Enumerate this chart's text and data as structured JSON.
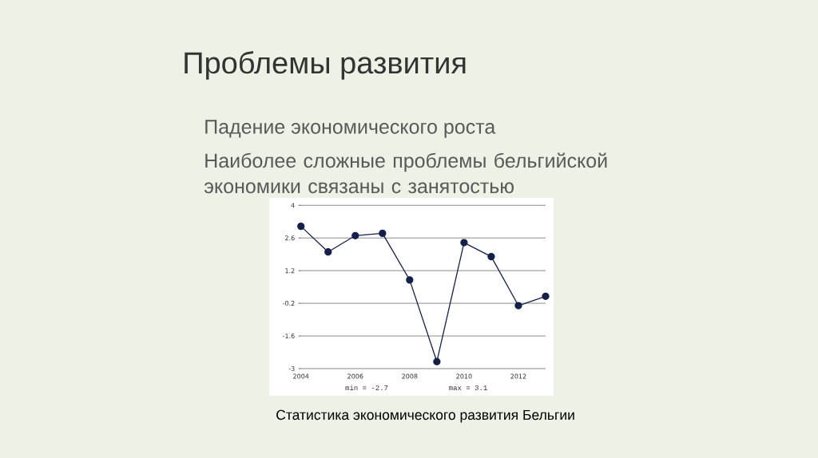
{
  "chart_data": {
    "type": "line",
    "title": "Проблемы развития",
    "annotations": [
      "Падение экономического роста",
      "Наиболее сложные проблемы бельгийской экономики связаны с занятостью",
      "min = -2.7",
      "max = 3.1",
      "Статистика экономического развития Бельгии"
    ],
    "x": [
      2004,
      2005,
      2006,
      2007,
      2008,
      2009,
      2010,
      2011,
      2012,
      2013
    ],
    "series": [
      {
        "color": "#14204a",
        "values": [
          3.1,
          2.0,
          2.7,
          2.8,
          0.8,
          -2.7,
          2.4,
          1.8,
          -0.3,
          0.1
        ]
      }
    ],
    "xlim": [
      2004,
      2013
    ],
    "ylim": [
      -3,
      4
    ],
    "xticks": [
      2004,
      2006,
      2008,
      2010,
      2012
    ],
    "yticks": [
      -3,
      -1.6,
      -0.2,
      1.2,
      2.6,
      4
    ],
    "grid": "y",
    "marker": "circle",
    "line_style": "solid"
  }
}
